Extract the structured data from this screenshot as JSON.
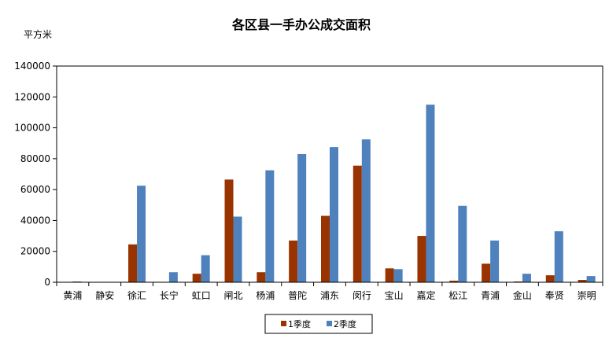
{
  "chart_data": {
    "type": "bar",
    "title": "各区县一手办公成交面积",
    "unit_label": "平方米",
    "xlabel": "",
    "ylabel": "",
    "ylim": [
      0,
      140000
    ],
    "yticks": [
      0,
      20000,
      40000,
      60000,
      80000,
      100000,
      120000,
      140000
    ],
    "grid": false,
    "legend_position": "bottom-center",
    "categories": [
      "黄浦",
      "静安",
      "徐汇",
      "长宁",
      "虹口",
      "闸北",
      "杨浦",
      "普陀",
      "浦东",
      "闵行",
      "宝山",
      "嘉定",
      "松江",
      "青浦",
      "金山",
      "奉贤",
      "崇明"
    ],
    "series": [
      {
        "name": "1季度",
        "color": "#993300",
        "values": [
          0,
          0,
          24500,
          0,
          5500,
          66500,
          6500,
          27000,
          43000,
          75500,
          9000,
          30000,
          1000,
          12000,
          500,
          4500,
          1500
        ]
      },
      {
        "name": "2季度",
        "color": "#4f81bd",
        "values": [
          500,
          0,
          62500,
          6500,
          17500,
          42500,
          72500,
          83000,
          87500,
          92500,
          8500,
          115000,
          49500,
          27000,
          5500,
          33000,
          4000
        ]
      }
    ]
  }
}
